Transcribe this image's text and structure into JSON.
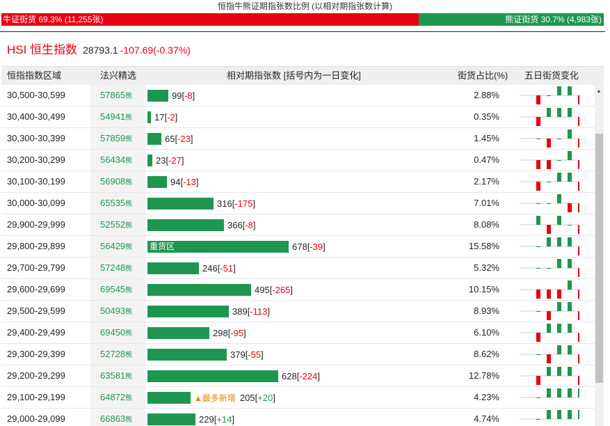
{
  "title": "恒指牛熊证期指张数比例 (以相对期指张数计算)",
  "ratio": {
    "bull_label": "牛证街货 69.3% (11,255张)",
    "bear_label": "熊证街货 30.7% (4,983张)",
    "bull_fraction": 0.693
  },
  "hsi": {
    "name": "HSI 恒生指数",
    "price": "28793.1",
    "change": "-107.69(-0.37%)"
  },
  "columns": [
    "恒指指数区域",
    "法兴精选",
    "相对期指张数 [括号内为一日变化]",
    "街货占比(%)",
    "五日街货变化"
  ],
  "bear_suffix": "熊",
  "colors": {
    "bull": "#e60012",
    "bear": "#1e9650",
    "new_tag": "#e58a00"
  },
  "rows": [
    {
      "range": "30,500-30,599",
      "code": "57865",
      "count": "99",
      "delta": "-8",
      "pct": "2.88%",
      "tag": "",
      "spark": [
        -1,
        0,
        1,
        1,
        -1
      ]
    },
    {
      "range": "30,400-30,499",
      "code": "54941",
      "count": "17",
      "delta": "-2",
      "pct": "0.35%",
      "tag": "",
      "spark": [
        -1,
        1,
        1,
        1,
        -1
      ]
    },
    {
      "range": "30,300-30,399",
      "code": "57859",
      "count": "65",
      "delta": "-23",
      "pct": "1.45%",
      "tag": "",
      "spark": [
        0,
        -1,
        0,
        1,
        -1
      ]
    },
    {
      "range": "30,200-30,299",
      "code": "56434",
      "count": "23",
      "delta": "-27",
      "pct": "0.47%",
      "tag": "",
      "spark": [
        -1,
        -1,
        0,
        1,
        -1
      ]
    },
    {
      "range": "30,100-30,199",
      "code": "56908",
      "count": "94",
      "delta": "-13",
      "pct": "2.17%",
      "tag": "",
      "spark": [
        -1,
        0,
        1,
        1,
        -1
      ]
    },
    {
      "range": "30,000-30,099",
      "code": "65535",
      "count": "316",
      "delta": "-175",
      "pct": "7.01%",
      "tag": "",
      "spark": [
        0,
        0,
        1,
        -1,
        -1
      ]
    },
    {
      "range": "29,900-29,999",
      "code": "52552",
      "count": "366",
      "delta": "-8",
      "pct": "8.08%",
      "tag": "",
      "spark": [
        1,
        -1,
        1,
        0,
        -1
      ]
    },
    {
      "range": "29,800-29,899",
      "code": "56429",
      "count": "678",
      "delta": "-39",
      "pct": "15.58%",
      "tag": "重货区",
      "spark": [
        0,
        1,
        1,
        1,
        -1
      ]
    },
    {
      "range": "29,700-29,799",
      "code": "57248",
      "count": "246",
      "delta": "-51",
      "pct": "5.32%",
      "tag": "",
      "spark": [
        0,
        0,
        1,
        1,
        -1
      ]
    },
    {
      "range": "29,600-29,699",
      "code": "69545",
      "count": "495",
      "delta": "-265",
      "pct": "10.15%",
      "tag": "",
      "spark": [
        -1,
        -1,
        -1,
        1,
        -1
      ]
    },
    {
      "range": "29,500-29,599",
      "code": "50493",
      "count": "389",
      "delta": "-113",
      "pct": "8.93%",
      "tag": "",
      "spark": [
        0,
        -1,
        1,
        1,
        -1
      ]
    },
    {
      "range": "29,400-29,499",
      "code": "69450",
      "count": "298",
      "delta": "-95",
      "pct": "6.10%",
      "tag": "",
      "spark": [
        -1,
        1,
        1,
        1,
        -1
      ]
    },
    {
      "range": "29,300-29,399",
      "code": "52728",
      "count": "379",
      "delta": "-55",
      "pct": "8.62%",
      "tag": "",
      "spark": [
        0,
        -1,
        1,
        1,
        -1
      ]
    },
    {
      "range": "29,200-29,299",
      "code": "63581",
      "count": "628",
      "delta": "-224",
      "pct": "12.78%",
      "tag": "",
      "spark": [
        -1,
        1,
        1,
        1,
        -1
      ]
    },
    {
      "range": "29,100-29,199",
      "code": "64872",
      "count": "205",
      "delta": "+20",
      "pct": "4.23%",
      "tag": "▲最多新增",
      "spark": [
        0,
        1,
        1,
        1,
        1
      ]
    },
    {
      "range": "29,000-29,099",
      "code": "66863",
      "count": "229",
      "delta": "+14",
      "pct": "4.74%",
      "tag": "",
      "spark": [
        0,
        1,
        1,
        1,
        1
      ]
    }
  ]
}
